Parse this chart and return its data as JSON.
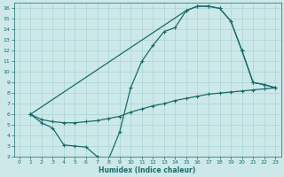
{
  "xlabel": "Humidex (Indice chaleur)",
  "xlim": [
    -0.5,
    23.5
  ],
  "ylim": [
    2,
    16.5
  ],
  "yticks": [
    2,
    3,
    4,
    5,
    6,
    7,
    8,
    9,
    10,
    11,
    12,
    13,
    14,
    15,
    16
  ],
  "xticks": [
    0,
    1,
    2,
    3,
    4,
    5,
    6,
    7,
    8,
    9,
    10,
    11,
    12,
    13,
    14,
    15,
    16,
    17,
    18,
    19,
    20,
    21,
    22,
    23
  ],
  "bg_color": "#cce8e8",
  "line_color": "#1a6b6b",
  "grid_color": "#aad4d4",
  "line1_x": [
    1,
    2,
    3,
    4,
    5,
    6,
    7,
    8,
    9,
    10,
    11,
    12,
    13,
    14,
    15,
    16,
    17,
    18,
    19,
    20,
    21,
    22,
    23
  ],
  "line1_y": [
    6.0,
    5.2,
    4.7,
    3.1,
    3.0,
    2.9,
    2.0,
    1.7,
    4.3,
    8.5,
    11.0,
    12.5,
    13.8,
    14.2,
    15.8,
    16.2,
    16.2,
    16.0,
    14.8,
    12.0,
    9.0,
    8.8,
    8.5
  ],
  "line2_x": [
    1,
    15,
    16,
    17,
    18,
    19,
    20,
    21,
    22,
    23
  ],
  "line2_y": [
    6.0,
    15.8,
    16.2,
    16.2,
    16.0,
    14.8,
    12.0,
    9.0,
    8.8,
    8.5
  ],
  "line3_x": [
    1,
    2,
    3,
    4,
    5,
    6,
    7,
    8,
    9,
    10,
    11,
    12,
    13,
    14,
    15,
    16,
    17,
    18,
    19,
    20,
    21,
    22,
    23
  ],
  "line3_y": [
    6.0,
    5.5,
    5.3,
    5.2,
    5.2,
    5.3,
    5.4,
    5.6,
    5.8,
    6.2,
    6.5,
    6.8,
    7.0,
    7.3,
    7.5,
    7.7,
    7.9,
    8.0,
    8.1,
    8.2,
    8.3,
    8.4,
    8.5
  ]
}
